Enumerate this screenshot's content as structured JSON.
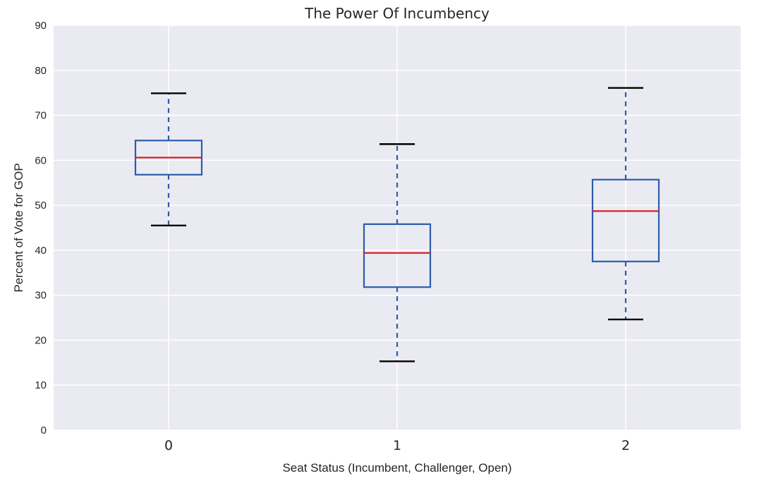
{
  "chart_data": {
    "type": "box",
    "title": "The Power Of Incumbency",
    "xlabel": "Seat Status (Incumbent, Challenger, Open)",
    "ylabel": "Percent of Vote for GOP",
    "ylim": [
      0,
      90
    ],
    "yticks": [
      0,
      10,
      20,
      30,
      40,
      50,
      60,
      70,
      80,
      90
    ],
    "grid": true,
    "categories": [
      "0",
      "1",
      "2"
    ],
    "boxes": [
      {
        "category": "0",
        "whisker_low": 45.5,
        "q1": 56.8,
        "median": 60.6,
        "q3": 64.4,
        "whisker_high": 74.9
      },
      {
        "category": "1",
        "whisker_low": 15.3,
        "q1": 31.8,
        "median": 39.4,
        "q3": 45.8,
        "whisker_high": 63.6
      },
      {
        "category": "2",
        "whisker_low": 24.6,
        "q1": 37.5,
        "median": 48.7,
        "q3": 55.7,
        "whisker_high": 76.1
      }
    ],
    "colors": {
      "background": "#eaeaf2",
      "grid": "#ffffff",
      "box": "#2c5cac",
      "whisker": "#2c5cac",
      "cap": "#000000",
      "median": "#d8201f"
    }
  }
}
